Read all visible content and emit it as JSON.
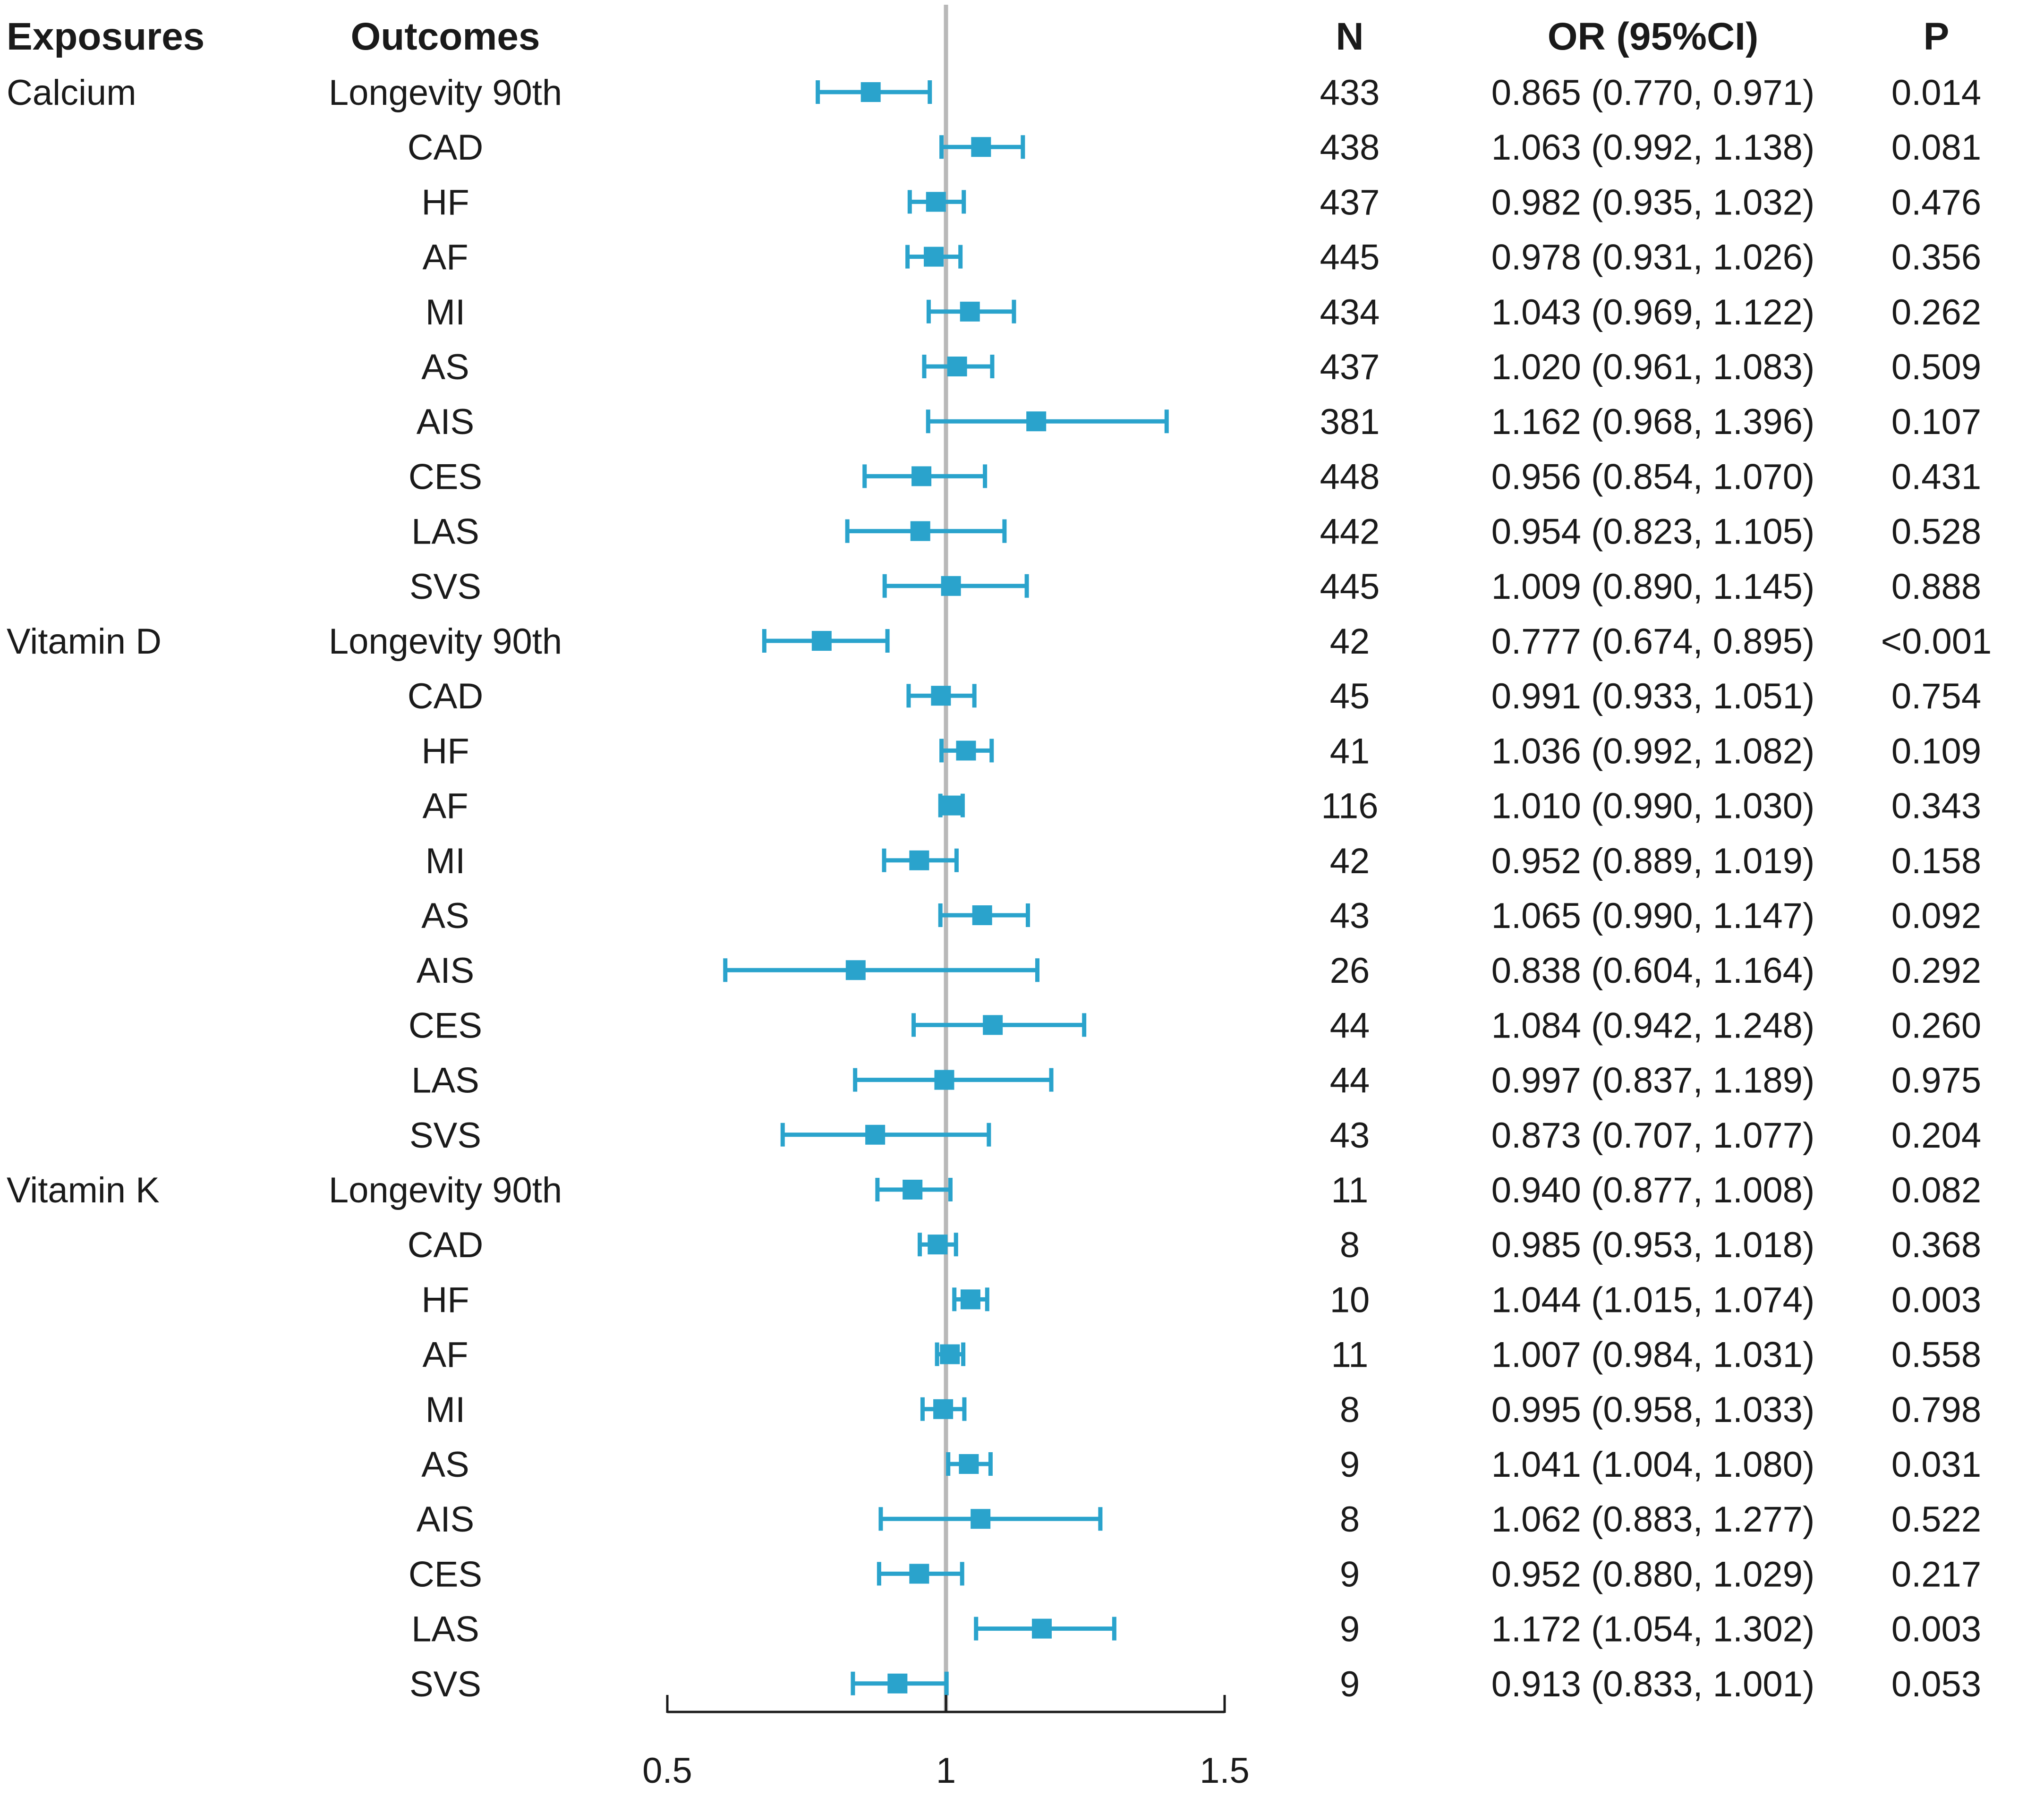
{
  "chart_data": {
    "type": "forest",
    "headers": {
      "exposures": "Exposures",
      "outcomes": "Outcomes",
      "n": "N",
      "or": "OR (95%CI)",
      "p": "P"
    },
    "x_axis": {
      "ticks": [
        0.5,
        1,
        1.5
      ],
      "tick_labels": [
        "0.5",
        "1",
        "1.5"
      ],
      "xlim": [
        0.5,
        1.5
      ],
      "reference_line": 1
    },
    "colors": {
      "marker": "#2aa3cc",
      "reference_line": "#b8b8b8",
      "axis": "#1a1a1a"
    },
    "rows": [
      {
        "exposure": "Calcium",
        "outcome": "Longevity 90th",
        "n": "433",
        "or_text": "0.865 (0.770, 0.971)",
        "p": "0.014",
        "or": 0.865,
        "lo": 0.77,
        "hi": 0.971
      },
      {
        "exposure": "",
        "outcome": "CAD",
        "n": "438",
        "or_text": "1.063 (0.992, 1.138)",
        "p": "0.081",
        "or": 1.063,
        "lo": 0.992,
        "hi": 1.138
      },
      {
        "exposure": "",
        "outcome": "HF",
        "n": "437",
        "or_text": "0.982 (0.935, 1.032)",
        "p": "0.476",
        "or": 0.982,
        "lo": 0.935,
        "hi": 1.032
      },
      {
        "exposure": "",
        "outcome": "AF",
        "n": "445",
        "or_text": "0.978 (0.931, 1.026)",
        "p": "0.356",
        "or": 0.978,
        "lo": 0.931,
        "hi": 1.026
      },
      {
        "exposure": "",
        "outcome": "MI",
        "n": "434",
        "or_text": "1.043 (0.969, 1.122)",
        "p": "0.262",
        "or": 1.043,
        "lo": 0.969,
        "hi": 1.122
      },
      {
        "exposure": "",
        "outcome": "AS",
        "n": "437",
        "or_text": "1.020 (0.961, 1.083)",
        "p": "0.509",
        "or": 1.02,
        "lo": 0.961,
        "hi": 1.083
      },
      {
        "exposure": "",
        "outcome": "AIS",
        "n": "381",
        "or_text": "1.162 (0.968, 1.396)",
        "p": "0.107",
        "or": 1.162,
        "lo": 0.968,
        "hi": 1.396
      },
      {
        "exposure": "",
        "outcome": "CES",
        "n": "448",
        "or_text": "0.956 (0.854, 1.070)",
        "p": "0.431",
        "or": 0.956,
        "lo": 0.854,
        "hi": 1.07
      },
      {
        "exposure": "",
        "outcome": "LAS",
        "n": "442",
        "or_text": "0.954 (0.823, 1.105)",
        "p": "0.528",
        "or": 0.954,
        "lo": 0.823,
        "hi": 1.105
      },
      {
        "exposure": "",
        "outcome": "SVS",
        "n": "445",
        "or_text": "1.009 (0.890, 1.145)",
        "p": "0.888",
        "or": 1.009,
        "lo": 0.89,
        "hi": 1.145
      },
      {
        "exposure": "Vitamin D",
        "outcome": "Longevity 90th",
        "n": "42",
        "or_text": "0.777 (0.674, 0.895)",
        "p": "<0.001",
        "or": 0.777,
        "lo": 0.674,
        "hi": 0.895
      },
      {
        "exposure": "",
        "outcome": "CAD",
        "n": "45",
        "or_text": "0.991 (0.933, 1.051)",
        "p": "0.754",
        "or": 0.991,
        "lo": 0.933,
        "hi": 1.051
      },
      {
        "exposure": "",
        "outcome": "HF",
        "n": "41",
        "or_text": "1.036 (0.992, 1.082)",
        "p": "0.109",
        "or": 1.036,
        "lo": 0.992,
        "hi": 1.082
      },
      {
        "exposure": "",
        "outcome": "AF",
        "n": "116",
        "or_text": "1.010 (0.990, 1.030)",
        "p": "0.343",
        "or": 1.01,
        "lo": 0.99,
        "hi": 1.03
      },
      {
        "exposure": "",
        "outcome": "MI",
        "n": "42",
        "or_text": "0.952 (0.889, 1.019)",
        "p": "0.158",
        "or": 0.952,
        "lo": 0.889,
        "hi": 1.019
      },
      {
        "exposure": "",
        "outcome": "AS",
        "n": "43",
        "or_text": "1.065 (0.990, 1.147)",
        "p": "0.092",
        "or": 1.065,
        "lo": 0.99,
        "hi": 1.147
      },
      {
        "exposure": "",
        "outcome": "AIS",
        "n": "26",
        "or_text": "0.838 (0.604, 1.164)",
        "p": "0.292",
        "or": 0.838,
        "lo": 0.604,
        "hi": 1.164
      },
      {
        "exposure": "",
        "outcome": "CES",
        "n": "44",
        "or_text": "1.084 (0.942, 1.248)",
        "p": "0.260",
        "or": 1.084,
        "lo": 0.942,
        "hi": 1.248
      },
      {
        "exposure": "",
        "outcome": "LAS",
        "n": "44",
        "or_text": "0.997 (0.837, 1.189)",
        "p": "0.975",
        "or": 0.997,
        "lo": 0.837,
        "hi": 1.189
      },
      {
        "exposure": "",
        "outcome": "SVS",
        "n": "43",
        "or_text": "0.873 (0.707, 1.077)",
        "p": "0.204",
        "or": 0.873,
        "lo": 0.707,
        "hi": 1.077
      },
      {
        "exposure": "Vitamin K",
        "outcome": "Longevity 90th",
        "n": "11",
        "or_text": "0.940 (0.877, 1.008)",
        "p": "0.082",
        "or": 0.94,
        "lo": 0.877,
        "hi": 1.008
      },
      {
        "exposure": "",
        "outcome": "CAD",
        "n": "8",
        "or_text": "0.985 (0.953, 1.018)",
        "p": "0.368",
        "or": 0.985,
        "lo": 0.953,
        "hi": 1.018
      },
      {
        "exposure": "",
        "outcome": "HF",
        "n": "10",
        "or_text": "1.044 (1.015, 1.074)",
        "p": "0.003",
        "or": 1.044,
        "lo": 1.015,
        "hi": 1.074
      },
      {
        "exposure": "",
        "outcome": "AF",
        "n": "11",
        "or_text": "1.007 (0.984, 1.031)",
        "p": "0.558",
        "or": 1.007,
        "lo": 0.984,
        "hi": 1.031
      },
      {
        "exposure": "",
        "outcome": "MI",
        "n": "8",
        "or_text": "0.995 (0.958, 1.033)",
        "p": "0.798",
        "or": 0.995,
        "lo": 0.958,
        "hi": 1.033
      },
      {
        "exposure": "",
        "outcome": "AS",
        "n": "9",
        "or_text": "1.041 (1.004, 1.080)",
        "p": "0.031",
        "or": 1.041,
        "lo": 1.004,
        "hi": 1.08
      },
      {
        "exposure": "",
        "outcome": "AIS",
        "n": "8",
        "or_text": "1.062 (0.883, 1.277)",
        "p": "0.522",
        "or": 1.062,
        "lo": 0.883,
        "hi": 1.277
      },
      {
        "exposure": "",
        "outcome": "CES",
        "n": "9",
        "or_text": "0.952 (0.880, 1.029)",
        "p": "0.217",
        "or": 0.952,
        "lo": 0.88,
        "hi": 1.029
      },
      {
        "exposure": "",
        "outcome": "LAS",
        "n": "9",
        "or_text": "1.172 (1.054, 1.302)",
        "p": "0.003",
        "or": 1.172,
        "lo": 1.054,
        "hi": 1.302
      },
      {
        "exposure": "",
        "outcome": "SVS",
        "n": "9",
        "or_text": "0.913 (0.833, 1.001)",
        "p": "0.053",
        "or": 0.913,
        "lo": 0.833,
        "hi": 1.001
      }
    ]
  }
}
